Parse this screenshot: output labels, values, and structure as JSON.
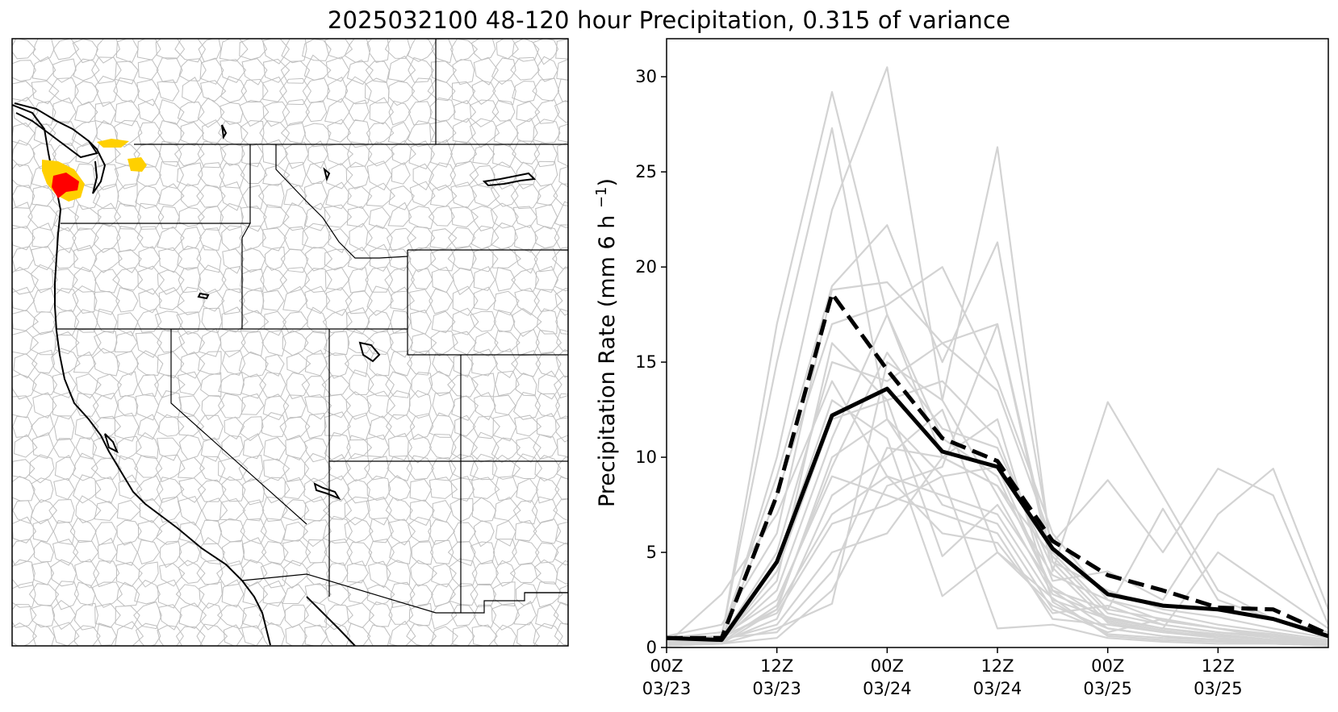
{
  "figure_title": "2025032100 48-120 hour Precipitation, 0.315 of variance",
  "map": {
    "highlight_colors": {
      "strong": "#ff0000",
      "moderate": "#ffd000"
    },
    "boundary_color": "#000000",
    "basin_color": "#bfbfbf"
  },
  "chart_data": {
    "type": "line",
    "ylabel": "Precipitation Rate (mm 6 h",
    "ylabel_sup": "−1",
    "ylabel_close": ")",
    "ylim": [
      0,
      32
    ],
    "yticks": [
      0,
      5,
      10,
      15,
      20,
      25,
      30
    ],
    "xlim": [
      0,
      36
    ],
    "x": [
      0,
      3,
      6,
      9,
      12,
      15,
      18,
      21,
      24,
      27,
      30,
      33,
      36
    ],
    "xticks": [
      {
        "x": 0,
        "line1": "00Z",
        "line2": "03/23"
      },
      {
        "x": 6,
        "line1": "12Z",
        "line2": "03/23"
      },
      {
        "x": 12,
        "line1": "00Z",
        "line2": "03/24"
      },
      {
        "x": 18,
        "line1": "12Z",
        "line2": "03/24"
      },
      {
        "x": 24,
        "line1": "00Z",
        "line2": "03/25"
      },
      {
        "x": 30,
        "line1": "12Z",
        "line2": "03/25"
      }
    ],
    "grid": false,
    "series": [
      {
        "style": "solid-black",
        "values": [
          0.5,
          0.4,
          4.5,
          12.2,
          13.6,
          10.3,
          9.5,
          5.2,
          2.8,
          2.2,
          2.0,
          1.5,
          0.6
        ]
      },
      {
        "style": "dashed-black",
        "values": [
          0.5,
          0.5,
          8.0,
          18.6,
          14.6,
          11.0,
          9.8,
          5.6,
          3.8,
          3.0,
          2.1,
          2.0,
          0.7
        ]
      }
    ],
    "members": [
      [
        0.3,
        0.5,
        17.0,
        29.2,
        17.5,
        10.0,
        8.5,
        4.8,
        1.8,
        1.2,
        0.8,
        0.5,
        0.3
      ],
      [
        0.4,
        0.6,
        15.0,
        27.3,
        12.0,
        9.0,
        9.5,
        3.0,
        1.0,
        0.6,
        0.4,
        0.3,
        0.2
      ],
      [
        0.2,
        0.3,
        10.0,
        23.0,
        30.5,
        13.0,
        26.3,
        4.5,
        1.5,
        1.0,
        0.7,
        0.4,
        0.2
      ],
      [
        0.5,
        0.8,
        9.0,
        19.0,
        22.2,
        15.0,
        21.3,
        5.0,
        2.0,
        1.5,
        1.0,
        0.6,
        0.3
      ],
      [
        0.3,
        0.4,
        8.0,
        17.0,
        18.0,
        20.0,
        14.0,
        6.0,
        2.5,
        1.8,
        1.2,
        0.8,
        0.4
      ],
      [
        0.6,
        1.2,
        6.0,
        18.8,
        19.2,
        16.0,
        17.0,
        4.0,
        12.9,
        8.0,
        3.0,
        1.5,
        0.5
      ],
      [
        0.4,
        0.5,
        5.0,
        15.0,
        14.0,
        16.0,
        13.5,
        5.5,
        8.8,
        5.0,
        9.4,
        8.0,
        1.2
      ],
      [
        0.2,
        0.3,
        4.0,
        12.0,
        13.0,
        14.0,
        11.0,
        3.5,
        4.0,
        2.5,
        7.0,
        9.4,
        2.0
      ],
      [
        0.3,
        0.4,
        3.0,
        11.0,
        17.5,
        11.0,
        9.0,
        3.0,
        2.0,
        7.3,
        2.5,
        1.5,
        0.8
      ],
      [
        0.2,
        2.8,
        7.0,
        14.0,
        9.0,
        8.0,
        7.0,
        2.5,
        1.5,
        1.0,
        5.0,
        3.0,
        1.0
      ],
      [
        0.1,
        0.2,
        2.0,
        10.0,
        12.0,
        7.5,
        6.5,
        2.0,
        0.8,
        1.5,
        1.0,
        0.5,
        0.2
      ],
      [
        0.3,
        0.6,
        2.5,
        9.0,
        8.0,
        7.0,
        6.0,
        1.5,
        1.2,
        0.8,
        0.5,
        0.3,
        0.2
      ],
      [
        0.2,
        0.3,
        1.5,
        8.0,
        10.0,
        12.5,
        5.0,
        2.2,
        1.0,
        0.6,
        0.4,
        0.2,
        0.1
      ],
      [
        0.4,
        0.5,
        2.0,
        7.0,
        9.0,
        6.0,
        5.5,
        1.8,
        2.2,
        1.2,
        0.8,
        0.6,
        0.3
      ],
      [
        0.1,
        0.2,
        1.0,
        2.3,
        15.0,
        13.0,
        8.0,
        2.8,
        1.6,
        1.0,
        0.6,
        0.4,
        0.2
      ],
      [
        0.3,
        0.4,
        3.5,
        16.0,
        13.0,
        4.8,
        7.5,
        3.2,
        1.4,
        0.9,
        0.5,
        0.3,
        0.2
      ],
      [
        0.2,
        0.3,
        4.5,
        13.0,
        11.0,
        2.7,
        5.0,
        2.6,
        0.6,
        0.4,
        0.3,
        0.2,
        0.1
      ],
      [
        0.5,
        0.6,
        1.8,
        6.5,
        7.5,
        9.0,
        1.0,
        1.2,
        0.5,
        0.3,
        0.2,
        0.2,
        0.1
      ],
      [
        0.3,
        0.4,
        1.2,
        5.0,
        6.0,
        10.0,
        12.0,
        2.4,
        0.7,
        0.5,
        0.4,
        0.3,
        0.2
      ],
      [
        0.2,
        0.3,
        2.2,
        9.5,
        15.5,
        11.5,
        10.5,
        4.2,
        1.3,
        0.8,
        0.6,
        0.4,
        0.2
      ],
      [
        0.4,
        0.5,
        0.8,
        4.0,
        10.5,
        10.0,
        8.5,
        3.8,
        2.5,
        1.4,
        1.0,
        0.7,
        0.3
      ],
      [
        0.1,
        0.2,
        0.5,
        3.0,
        8.5,
        9.5,
        17.0,
        4.5,
        3.0,
        2.0,
        1.6,
        1.0,
        0.5
      ]
    ],
    "colors": {
      "mean": "#000000",
      "members": "#d3d3d3",
      "axes": "#000000"
    }
  }
}
